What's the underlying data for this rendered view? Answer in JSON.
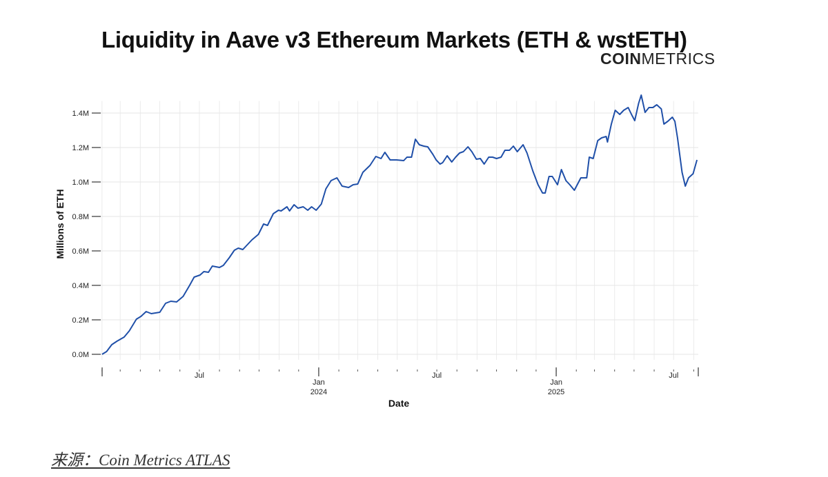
{
  "logo": {
    "bold": "COIN",
    "light": "METRICS"
  },
  "source": "来源：Coin Metrics ATLAS",
  "chart_data": {
    "type": "line",
    "title": "Liquidity in Aave v3 Ethereum Markets (ETH & wstETH)",
    "xlabel": "Date",
    "ylabel": "Millions of ETH",
    "xlim": [
      "2023-01-30",
      "2025-08-08"
    ],
    "ylim": [
      0,
      1.55
    ],
    "grid": true,
    "line_color": "#1f4fa8",
    "y_ticks": [
      {
        "value": 0,
        "label": "0.0M"
      },
      {
        "value": 0.2,
        "label": "0.2M"
      },
      {
        "value": 0.4,
        "label": "0.4M"
      },
      {
        "value": 0.6,
        "label": "0.6M"
      },
      {
        "value": 0.8,
        "label": "0.8M"
      },
      {
        "value": 1.0,
        "label": "1.0M"
      },
      {
        "value": 1.2,
        "label": "1.2M"
      },
      {
        "value": 1.4,
        "label": "1.4M"
      }
    ],
    "x_ticks": [
      {
        "date": "2023-07-01",
        "label": "Jul",
        "sub": ""
      },
      {
        "date": "2024-01-01",
        "label": "Jan",
        "sub": "2024"
      },
      {
        "date": "2024-07-01",
        "label": "Jul",
        "sub": ""
      },
      {
        "date": "2025-01-01",
        "label": "Jan",
        "sub": "2025"
      },
      {
        "date": "2025-07-01",
        "label": "Jul",
        "sub": ""
      }
    ],
    "series": [
      {
        "x": [
          "2023-02-01",
          "2023-02-08",
          "2023-02-16",
          "2023-02-24",
          "2023-03-07",
          "2023-03-15",
          "2023-03-26",
          "2023-04-02",
          "2023-04-10",
          "2023-04-18",
          "2023-05-01",
          "2023-05-10",
          "2023-05-18",
          "2023-05-27",
          "2023-06-06",
          "2023-06-16",
          "2023-06-23",
          "2023-07-02",
          "2023-07-08",
          "2023-07-15",
          "2023-07-21",
          "2023-08-01",
          "2023-08-07",
          "2023-08-16",
          "2023-08-24",
          "2023-08-30",
          "2023-09-06",
          "2023-09-20",
          "2023-09-30",
          "2023-10-08",
          "2023-10-14",
          "2023-10-23",
          "2023-10-31",
          "2023-11-04",
          "2023-11-13",
          "2023-11-17",
          "2023-11-24",
          "2023-11-30",
          "2023-12-08",
          "2023-12-15",
          "2023-12-21",
          "2023-12-28",
          "2024-01-05",
          "2024-01-12",
          "2024-01-20",
          "2024-01-29",
          "2024-02-06",
          "2024-02-16",
          "2024-02-23",
          "2024-03-01",
          "2024-03-09",
          "2024-03-20",
          "2024-03-29",
          "2024-04-06",
          "2024-04-12",
          "2024-04-20",
          "2024-04-30",
          "2024-05-11",
          "2024-05-16",
          "2024-05-23",
          "2024-05-29",
          "2024-06-04",
          "2024-06-11",
          "2024-06-17",
          "2024-06-25",
          "2024-06-30",
          "2024-07-06",
          "2024-07-10",
          "2024-07-17",
          "2024-07-24",
          "2024-07-30",
          "2024-08-05",
          "2024-08-11",
          "2024-08-18",
          "2024-08-24",
          "2024-08-31",
          "2024-09-06",
          "2024-09-12",
          "2024-09-19",
          "2024-09-25",
          "2024-10-01",
          "2024-10-08",
          "2024-10-14",
          "2024-10-21",
          "2024-10-27",
          "2024-11-02",
          "2024-11-11",
          "2024-11-17",
          "2024-11-26",
          "2024-12-04",
          "2024-12-11",
          "2024-12-15",
          "2024-12-21",
          "2024-12-26",
          "2025-01-03",
          "2025-01-09",
          "2025-01-16",
          "2025-01-22",
          "2025-01-29",
          "2025-02-08",
          "2025-02-17",
          "2025-02-21",
          "2025-02-27",
          "2025-03-06",
          "2025-03-12",
          "2025-03-19",
          "2025-03-21",
          "2025-03-27",
          "2025-04-02",
          "2025-04-09",
          "2025-04-15",
          "2025-04-22",
          "2025-04-27",
          "2025-05-02",
          "2025-05-08",
          "2025-05-12",
          "2025-05-18",
          "2025-05-24",
          "2025-05-30",
          "2025-06-05",
          "2025-06-12",
          "2025-06-16",
          "2025-06-22",
          "2025-06-29",
          "2025-07-03",
          "2025-07-07",
          "2025-07-14",
          "2025-07-19",
          "2025-07-24",
          "2025-07-31",
          "2025-08-06"
        ],
        "y": [
          0,
          0.016,
          0.056,
          0.076,
          0.1,
          0.136,
          0.204,
          0.22,
          0.248,
          0.236,
          0.244,
          0.296,
          0.308,
          0.304,
          0.336,
          0.4,
          0.448,
          0.46,
          0.48,
          0.476,
          0.512,
          0.504,
          0.516,
          0.56,
          0.604,
          0.616,
          0.608,
          0.664,
          0.696,
          0.756,
          0.748,
          0.816,
          0.836,
          0.832,
          0.856,
          0.832,
          0.868,
          0.848,
          0.856,
          0.836,
          0.856,
          0.836,
          0.872,
          0.96,
          1.008,
          1.024,
          0.976,
          0.968,
          0.984,
          0.988,
          1.056,
          1.096,
          1.148,
          1.136,
          1.172,
          1.128,
          1.128,
          1.124,
          1.144,
          1.144,
          1.248,
          1.216,
          1.208,
          1.204,
          1.16,
          1.128,
          1.104,
          1.112,
          1.152,
          1.116,
          1.144,
          1.168,
          1.176,
          1.204,
          1.176,
          1.132,
          1.136,
          1.104,
          1.144,
          1.144,
          1.136,
          1.144,
          1.184,
          1.184,
          1.208,
          1.176,
          1.216,
          1.168,
          1.064,
          0.984,
          0.936,
          0.936,
          1.032,
          1.032,
          0.984,
          1.072,
          1.008,
          0.984,
          0.952,
          1.024,
          1.024,
          1.144,
          1.136,
          1.24,
          1.256,
          1.264,
          1.232,
          1.336,
          1.416,
          1.392,
          1.416,
          1.432,
          1.392,
          1.356,
          1.456,
          1.504,
          1.404,
          1.432,
          1.432,
          1.448,
          1.424,
          1.336,
          1.352,
          1.376,
          1.352,
          1.256,
          1.056,
          0.976,
          1.024,
          1.048,
          1.128
        ]
      }
    ]
  }
}
